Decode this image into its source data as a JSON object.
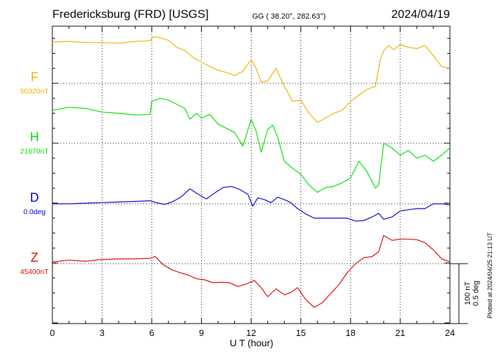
{
  "header": {
    "station": "Fredericksburg (FRD)  [USGS]",
    "coords": "GG ( 38.20°, 282.63°)",
    "date": "2024/04/19"
  },
  "footer": {
    "plotted": "Plotted at 2024/04/25 21:13 UT"
  },
  "scale": {
    "line1": "100 nT",
    "line2": "0.5 deg"
  },
  "colors": {
    "F": "#f0b000",
    "H": "#00e000",
    "D": "#0000d0",
    "Z": "#e00000"
  },
  "chart_data": {
    "type": "line",
    "xlabel": "U T (hour)",
    "xlim": [
      0,
      24
    ],
    "xticks": [
      "0",
      "3",
      "6",
      "9",
      "12",
      "15",
      "18",
      "21",
      "24"
    ],
    "grid": true,
    "series": [
      {
        "name": "F",
        "baseline_label": "50320nT",
        "baseline_value": 50320,
        "unit": "nT",
        "x": [
          0,
          1,
          2,
          3,
          4,
          5,
          5.9,
          6.1,
          6.5,
          7,
          7.5,
          8,
          8.5,
          9,
          9.5,
          10,
          10.5,
          11,
          11.5,
          12,
          12.3,
          12.6,
          13,
          13.5,
          14,
          14.5,
          15,
          15.5,
          16,
          16.5,
          17,
          17.5,
          18,
          18.5,
          19,
          19.5,
          19.8,
          20,
          20.3,
          20.6,
          21,
          21.5,
          22,
          22.5,
          23,
          23.5,
          24
        ],
        "values": [
          50389,
          50390,
          50388,
          50388,
          50387,
          50390,
          50391,
          50398,
          50396,
          50392,
          50380,
          50375,
          50363,
          50355,
          50348,
          50342,
          50338,
          50333,
          50340,
          50360,
          50345,
          50322,
          50324,
          50345,
          50315,
          50290,
          50292,
          50270,
          50255,
          50262,
          50270,
          50275,
          50290,
          50300,
          50310,
          50315,
          50360,
          50374,
          50383,
          50376,
          50385,
          50380,
          50378,
          50383,
          50366,
          50348,
          50345
        ]
      },
      {
        "name": "H",
        "baseline_label": "21670nT",
        "baseline_value": 21670,
        "unit": "nT",
        "x": [
          0,
          1,
          2,
          3,
          4,
          5,
          5.9,
          6.0,
          6.5,
          7,
          7.5,
          8,
          8.3,
          8.7,
          9,
          9.5,
          10,
          10.5,
          11,
          11.5,
          12,
          12.3,
          12.6,
          13,
          13.3,
          13.6,
          14,
          14.5,
          15,
          15.5,
          16,
          16.5,
          17,
          17.5,
          18,
          18.5,
          19,
          19.5,
          19.7,
          20,
          20.5,
          21,
          21.5,
          22,
          22.5,
          23,
          23.5,
          24
        ],
        "values": [
          21725,
          21730,
          21728,
          21722,
          21720,
          21717,
          21718,
          21740,
          21745,
          21742,
          21735,
          21728,
          21710,
          21720,
          21712,
          21718,
          21702,
          21695,
          21688,
          21665,
          21710,
          21690,
          21655,
          21693,
          21700,
          21680,
          21640,
          21628,
          21618,
          21600,
          21588,
          21596,
          21598,
          21604,
          21612,
          21640,
          21622,
          21595,
          21600,
          21670,
          21662,
          21650,
          21658,
          21645,
          21650,
          21640,
          21650,
          21662
        ]
      },
      {
        "name": "D",
        "baseline_label": "0.0deg",
        "baseline_value": 0.0,
        "unit": "deg",
        "x": [
          0,
          1,
          2,
          3,
          4,
          5,
          5.9,
          6.3,
          6.8,
          7.3,
          7.8,
          8.3,
          8.8,
          9.3,
          9.8,
          10.3,
          10.8,
          11.3,
          11.8,
          12.1,
          12.4,
          12.8,
          13.2,
          13.6,
          14,
          14.4,
          14.8,
          15.3,
          15.8,
          16.3,
          16.8,
          17.3,
          17.8,
          18.3,
          18.8,
          19.3,
          19.7,
          20,
          20.5,
          21,
          21.5,
          22,
          22.5,
          23,
          23.5,
          24
        ],
        "values": [
          0.0,
          0.0,
          0.005,
          0.01,
          0.015,
          0.02,
          0.025,
          0.008,
          -0.005,
          0.02,
          0.06,
          0.125,
          0.08,
          0.04,
          0.09,
          0.135,
          0.145,
          0.12,
          0.08,
          -0.02,
          0.05,
          0.035,
          0.01,
          0.055,
          0.035,
          0.01,
          -0.04,
          -0.085,
          -0.12,
          -0.12,
          -0.12,
          -0.12,
          -0.12,
          -0.145,
          -0.14,
          -0.11,
          -0.08,
          -0.13,
          -0.11,
          -0.06,
          -0.05,
          -0.04,
          -0.04,
          0.0,
          0.0,
          -0.01
        ]
      },
      {
        "name": "Z",
        "baseline_label": "45400nT",
        "baseline_value": 45400,
        "unit": "nT",
        "x": [
          0,
          1,
          2,
          3,
          4,
          5,
          5.9,
          6.2,
          6.7,
          7.2,
          7.7,
          8.2,
          8.7,
          9.2,
          9.7,
          10.2,
          10.7,
          11.2,
          11.7,
          12.2,
          12.6,
          13,
          13.5,
          14,
          14.4,
          14.8,
          15.3,
          15.8,
          16.3,
          16.8,
          17.3,
          17.8,
          18.3,
          18.8,
          19.3,
          19.7,
          20,
          20.5,
          21,
          21.5,
          22,
          22.5,
          23,
          23.5,
          24
        ],
        "values": [
          45403,
          45406,
          45404,
          45407,
          45408,
          45408,
          45409,
          45412,
          45398,
          45390,
          45385,
          45381,
          45375,
          45373,
          45368,
          45369,
          45368,
          45362,
          45366,
          45372,
          45360,
          45345,
          45358,
          45348,
          45352,
          45360,
          45340,
          45327,
          45335,
          45350,
          45365,
          45385,
          45400,
          45410,
          45412,
          45420,
          45447,
          45439,
          45441,
          45441,
          45440,
          45435,
          45423,
          45408,
          45403
        ]
      }
    ]
  }
}
